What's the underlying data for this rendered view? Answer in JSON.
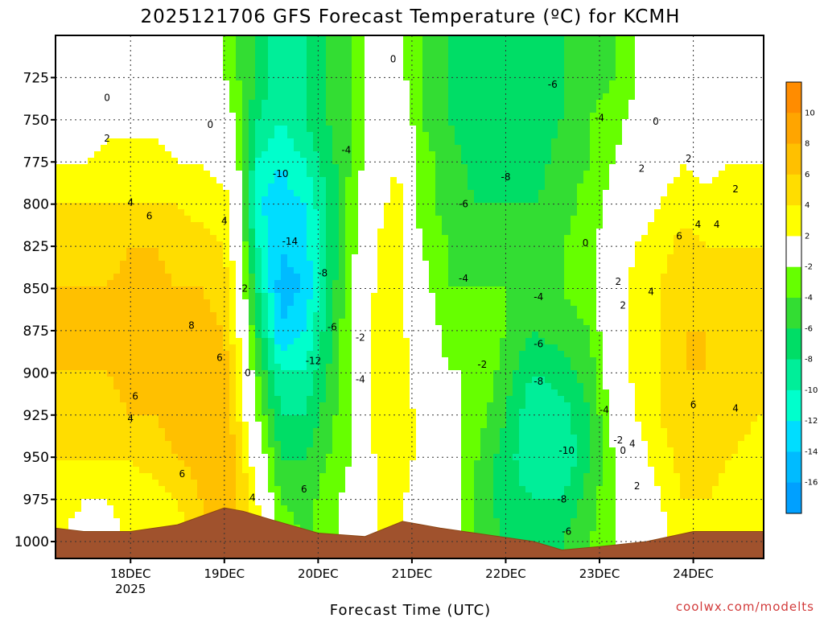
{
  "chart_data": {
    "type": "heatmap",
    "title": "2025121706 GFS Forecast Temperature (ºC) for KCMH",
    "xlabel": "Forecast Time (UTC)",
    "ylabel": "",
    "credit": "coolwx.com/modelts",
    "x_ticks": [
      "18DEC",
      "19DEC",
      "20DEC",
      "21DEC",
      "22DEC",
      "23DEC",
      "24DEC"
    ],
    "x_year_label": "2025",
    "x_range_days": [
      17.2,
      24.75
    ],
    "y_ticks": [
      725,
      750,
      775,
      800,
      825,
      850,
      875,
      900,
      925,
      950,
      975,
      1000
    ],
    "y_range_hpa": [
      700,
      1010
    ],
    "colorbar": {
      "labels": [
        "10",
        "8",
        "6",
        "4",
        "2",
        "-2",
        "-4",
        "-6",
        "-8",
        "-10",
        "-12",
        "-14",
        "-16"
      ],
      "colors": [
        "#ff8c00",
        "#ffa500",
        "#ffc000",
        "#ffdd00",
        "#ffff00",
        "#ffffff",
        "#66ff00",
        "#33dd33",
        "#00dd66",
        "#00ee99",
        "#00ffcc",
        "#00ddff",
        "#00bbff",
        "#00a0ff"
      ]
    },
    "columns": [
      {
        "day": 17.25,
        "temps": [
          -2,
          0,
          2,
          4,
          5,
          6,
          6,
          6,
          5,
          4,
          3,
          2
        ]
      },
      {
        "day": 17.5,
        "temps": [
          -1,
          0,
          2,
          4,
          5,
          6,
          6,
          6,
          5,
          4,
          2,
          1
        ]
      },
      {
        "day": 17.75,
        "temps": [
          -1,
          1,
          3,
          4,
          5,
          6,
          7,
          6,
          5,
          4,
          2,
          1
        ]
      },
      {
        "day": 18.0,
        "temps": [
          0,
          1,
          3,
          4,
          6,
          7,
          7,
          7,
          6,
          4,
          3,
          2
        ]
      },
      {
        "day": 18.25,
        "temps": [
          -1,
          1,
          3,
          4,
          6,
          7,
          7,
          7,
          6,
          5,
          3,
          2
        ]
      },
      {
        "day": 18.5,
        "temps": [
          -1,
          1,
          2,
          4,
          5,
          6,
          8,
          8,
          7,
          6,
          4,
          3
        ]
      },
      {
        "day": 18.75,
        "temps": [
          -1,
          0,
          2,
          3,
          5,
          6,
          7,
          8,
          8,
          7,
          6,
          5
        ]
      },
      {
        "day": 19.0,
        "temps": [
          -2,
          0,
          1,
          3,
          4,
          5,
          6,
          7,
          7,
          8,
          8,
          7
        ]
      },
      {
        "day": 19.15,
        "temps": [
          -4,
          -3,
          -2,
          -1,
          0,
          1,
          2,
          3,
          4,
          6,
          6,
          6
        ]
      },
      {
        "day": 19.35,
        "temps": [
          -6,
          -8,
          -10,
          -12,
          -10,
          -8,
          -6,
          -4,
          -2,
          0,
          2,
          4
        ]
      },
      {
        "day": 19.6,
        "temps": [
          -10,
          -10,
          -12,
          -13,
          -14,
          -15,
          -14,
          -10,
          -8,
          -6,
          -4,
          -2
        ]
      },
      {
        "day": 19.85,
        "temps": [
          -8,
          -8,
          -10,
          -12,
          -13,
          -14,
          -12,
          -10,
          -8,
          -6,
          -5,
          -4
        ]
      },
      {
        "day": 20.1,
        "temps": [
          -6,
          -6,
          -7,
          -8,
          -8,
          -8,
          -7,
          -6,
          -5,
          -4,
          -3,
          -3
        ]
      },
      {
        "day": 20.35,
        "temps": [
          -4,
          -4,
          -4,
          -3,
          -3,
          -2,
          -2,
          -2,
          -2,
          -2,
          -1,
          -1
        ]
      },
      {
        "day": 20.6,
        "temps": [
          0,
          -1,
          0,
          1,
          2,
          2,
          3,
          3,
          3,
          2,
          2,
          2
        ]
      },
      {
        "day": 20.85,
        "temps": [
          -1,
          1,
          2,
          3,
          3,
          3,
          3,
          4,
          4,
          4,
          3,
          3
        ]
      },
      {
        "day": 21.1,
        "temps": [
          -4,
          -4,
          -3,
          -3,
          -2,
          -1,
          0,
          0,
          1,
          1,
          0,
          0
        ]
      },
      {
        "day": 21.4,
        "temps": [
          -6,
          -6,
          -5,
          -5,
          -4,
          -4,
          -3,
          -2,
          -1,
          0,
          0,
          0
        ]
      },
      {
        "day": 21.7,
        "temps": [
          -8,
          -8,
          -7,
          -6,
          -5,
          -4,
          -3,
          -2,
          -3,
          -4,
          -5,
          -5
        ]
      },
      {
        "day": 22.0,
        "temps": [
          -8,
          -8,
          -7,
          -6,
          -5,
          -4,
          -4,
          -5,
          -6,
          -7,
          -7,
          -6
        ]
      },
      {
        "day": 22.3,
        "temps": [
          -8,
          -7,
          -7,
          -6,
          -5,
          -5,
          -6,
          -8,
          -10,
          -10,
          -8,
          -7
        ]
      },
      {
        "day": 22.6,
        "temps": [
          -6,
          -6,
          -5,
          -5,
          -4,
          -4,
          -5,
          -7,
          -9,
          -10,
          -8,
          -6
        ]
      },
      {
        "day": 22.9,
        "temps": [
          -5,
          -4,
          -4,
          -3,
          -3,
          -3,
          -4,
          -5,
          -6,
          -6,
          -5,
          -4
        ]
      },
      {
        "day": 23.15,
        "temps": [
          -4,
          -3,
          -2,
          -1,
          0,
          1,
          1,
          0,
          -1,
          -2,
          -2,
          -2
        ]
      },
      {
        "day": 23.4,
        "temps": [
          -2,
          -1,
          0,
          1,
          2,
          3,
          3,
          3,
          2,
          1,
          0,
          -1
        ]
      },
      {
        "day": 23.65,
        "temps": [
          -1,
          0,
          1,
          2,
          3,
          4,
          4,
          4,
          4,
          3,
          2,
          1
        ]
      },
      {
        "day": 23.9,
        "temps": [
          -1,
          0,
          2,
          3,
          5,
          6,
          6,
          6,
          6,
          5,
          4,
          3
        ]
      },
      {
        "day": 24.15,
        "temps": [
          -1,
          0,
          1,
          3,
          4,
          5,
          6,
          6,
          5,
          5,
          4,
          3
        ]
      },
      {
        "day": 24.4,
        "temps": [
          -1,
          1,
          2,
          3,
          4,
          4,
          5,
          5,
          5,
          4,
          3,
          3
        ]
      },
      {
        "day": 24.7,
        "temps": [
          -1,
          0,
          2,
          3,
          4,
          4,
          4,
          4,
          4,
          3,
          2,
          2
        ]
      }
    ],
    "surface_pressure": [
      {
        "day": 17.2,
        "hpa": 992
      },
      {
        "day": 17.5,
        "hpa": 994
      },
      {
        "day": 18.0,
        "hpa": 994
      },
      {
        "day": 18.5,
        "hpa": 990
      },
      {
        "day": 19.0,
        "hpa": 980
      },
      {
        "day": 19.2,
        "hpa": 982
      },
      {
        "day": 19.5,
        "hpa": 987
      },
      {
        "day": 20.0,
        "hpa": 995
      },
      {
        "day": 20.5,
        "hpa": 997
      },
      {
        "day": 20.9,
        "hpa": 988
      },
      {
        "day": 21.3,
        "hpa": 992
      },
      {
        "day": 21.8,
        "hpa": 996
      },
      {
        "day": 22.3,
        "hpa": 1000
      },
      {
        "day": 22.6,
        "hpa": 1005
      },
      {
        "day": 23.0,
        "hpa": 1003
      },
      {
        "day": 23.5,
        "hpa": 1000
      },
      {
        "day": 24.0,
        "hpa": 994
      },
      {
        "day": 24.5,
        "hpa": 994
      },
      {
        "day": 24.75,
        "hpa": 994
      }
    ],
    "contour_labels": [
      {
        "text": "0",
        "day": 17.75,
        "hpa": 737
      },
      {
        "text": "2",
        "day": 17.75,
        "hpa": 761
      },
      {
        "text": "0",
        "day": 18.85,
        "hpa": 753
      },
      {
        "text": "4",
        "day": 18.0,
        "hpa": 799
      },
      {
        "text": "6",
        "day": 18.2,
        "hpa": 807
      },
      {
        "text": "4",
        "day": 19.0,
        "hpa": 810
      },
      {
        "text": "8",
        "day": 18.65,
        "hpa": 872
      },
      {
        "text": "6",
        "day": 18.95,
        "hpa": 891
      },
      {
        "text": "6",
        "day": 18.05,
        "hpa": 914
      },
      {
        "text": "4",
        "day": 18.0,
        "hpa": 927
      },
      {
        "text": "6",
        "day": 18.55,
        "hpa": 960
      },
      {
        "text": "4",
        "day": 19.3,
        "hpa": 974
      },
      {
        "text": "0",
        "day": 19.25,
        "hpa": 900
      },
      {
        "text": "-2",
        "day": 19.2,
        "hpa": 850
      },
      {
        "text": "-10",
        "day": 19.6,
        "hpa": 782
      },
      {
        "text": "-14",
        "day": 19.7,
        "hpa": 822
      },
      {
        "text": "-8",
        "day": 20.05,
        "hpa": 841
      },
      {
        "text": "-4",
        "day": 20.3,
        "hpa": 768
      },
      {
        "text": "-6",
        "day": 20.15,
        "hpa": 873
      },
      {
        "text": "-2",
        "day": 20.45,
        "hpa": 879
      },
      {
        "text": "-12",
        "day": 19.95,
        "hpa": 893
      },
      {
        "text": "-4",
        "day": 20.45,
        "hpa": 904
      },
      {
        "text": "6",
        "day": 19.85,
        "hpa": 969
      },
      {
        "text": "0",
        "day": 20.8,
        "hpa": 714
      },
      {
        "text": "-6",
        "day": 21.55,
        "hpa": 800
      },
      {
        "text": "-4",
        "day": 21.55,
        "hpa": 844
      },
      {
        "text": "-2",
        "day": 21.75,
        "hpa": 895
      },
      {
        "text": "-8",
        "day": 22.0,
        "hpa": 784
      },
      {
        "text": "-6",
        "day": 22.5,
        "hpa": 729
      },
      {
        "text": "-4",
        "day": 22.35,
        "hpa": 855
      },
      {
        "text": "-6",
        "day": 22.35,
        "hpa": 883
      },
      {
        "text": "-8",
        "day": 22.35,
        "hpa": 905
      },
      {
        "text": "-10",
        "day": 22.65,
        "hpa": 946
      },
      {
        "text": "-8",
        "day": 22.6,
        "hpa": 975
      },
      {
        "text": "-6",
        "day": 22.65,
        "hpa": 994
      },
      {
        "text": "-4",
        "day": 23.0,
        "hpa": 749
      },
      {
        "text": "0",
        "day": 23.6,
        "hpa": 751
      },
      {
        "text": "2",
        "day": 23.45,
        "hpa": 779
      },
      {
        "text": "2",
        "day": 23.95,
        "hpa": 773
      },
      {
        "text": "0",
        "day": 22.85,
        "hpa": 823
      },
      {
        "text": "2",
        "day": 23.2,
        "hpa": 846
      },
      {
        "text": "2",
        "day": 23.25,
        "hpa": 860
      },
      {
        "text": "4",
        "day": 23.55,
        "hpa": 852
      },
      {
        "text": "6",
        "day": 23.85,
        "hpa": 819
      },
      {
        "text": "4",
        "day": 24.05,
        "hpa": 812
      },
      {
        "text": "4",
        "day": 24.25,
        "hpa": 812
      },
      {
        "text": "2",
        "day": 24.45,
        "hpa": 791
      },
      {
        "text": "-4",
        "day": 23.05,
        "hpa": 922
      },
      {
        "text": "-2",
        "day": 23.2,
        "hpa": 940
      },
      {
        "text": "4",
        "day": 23.35,
        "hpa": 942
      },
      {
        "text": "0",
        "day": 23.25,
        "hpa": 946
      },
      {
        "text": "2",
        "day": 23.4,
        "hpa": 967
      },
      {
        "text": "6",
        "day": 24.0,
        "hpa": 919
      },
      {
        "text": "4",
        "day": 24.45,
        "hpa": 921
      }
    ]
  }
}
